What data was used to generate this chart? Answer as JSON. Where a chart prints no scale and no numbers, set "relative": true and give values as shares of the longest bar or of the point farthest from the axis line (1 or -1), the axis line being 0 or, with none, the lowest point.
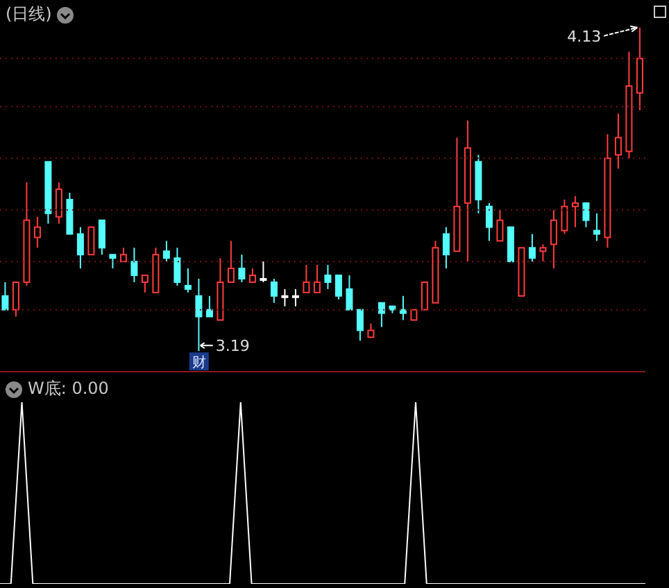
{
  "chart_data": [
    {
      "type": "candlestick",
      "title": "(日线)",
      "categories": [
        null,
        null,
        null,
        null,
        null,
        null,
        null,
        null,
        null,
        null,
        null,
        null,
        null,
        null,
        null,
        null,
        null,
        null,
        null,
        null,
        null,
        null,
        null,
        null,
        null,
        null,
        null,
        null,
        null,
        null,
        null,
        null,
        null,
        null,
        null,
        null,
        null,
        null,
        null,
        null,
        null,
        null,
        null,
        null,
        null,
        null,
        null,
        null,
        null,
        null,
        null,
        null,
        null,
        null,
        null,
        null,
        null,
        null,
        null,
        null
      ],
      "ohlc": [
        [
          3.35,
          3.39,
          3.31,
          3.31
        ],
        [
          3.31,
          3.39,
          3.29,
          3.39
        ],
        [
          3.39,
          3.68,
          3.38,
          3.57
        ],
        [
          3.52,
          3.58,
          3.49,
          3.55
        ],
        [
          3.74,
          3.74,
          3.56,
          3.59
        ],
        [
          3.58,
          3.68,
          3.56,
          3.66
        ],
        [
          3.63,
          3.65,
          3.53,
          3.53
        ],
        [
          3.53,
          3.55,
          3.43,
          3.47
        ],
        [
          3.47,
          3.55,
          3.47,
          3.55
        ],
        [
          3.57,
          3.57,
          3.47,
          3.49
        ],
        [
          3.47,
          3.47,
          3.43,
          3.46
        ],
        [
          3.45,
          3.49,
          3.45,
          3.47
        ],
        [
          3.45,
          3.49,
          3.39,
          3.41
        ],
        [
          3.39,
          3.41,
          3.36,
          3.41
        ],
        [
          3.36,
          3.49,
          3.36,
          3.47
        ],
        [
          3.48,
          3.51,
          3.45,
          3.46
        ],
        [
          3.46,
          3.49,
          3.38,
          3.39
        ],
        [
          3.38,
          3.43,
          3.36,
          3.37
        ],
        [
          3.35,
          3.4,
          3.19,
          3.29
        ],
        [
          3.31,
          3.35,
          3.29,
          3.29
        ],
        [
          3.28,
          3.46,
          3.28,
          3.39
        ],
        [
          3.39,
          3.51,
          3.39,
          3.43
        ],
        [
          3.43,
          3.47,
          3.39,
          3.4
        ],
        [
          3.39,
          3.43,
          3.39,
          3.41
        ],
        [
          3.4,
          3.45,
          3.39,
          3.4
        ],
        [
          3.39,
          3.4,
          3.33,
          3.35
        ],
        [
          3.35,
          3.37,
          3.32,
          3.35
        ],
        [
          3.35,
          3.37,
          3.32,
          3.35
        ],
        [
          3.36,
          3.44,
          3.36,
          3.39
        ],
        [
          3.36,
          3.44,
          3.36,
          3.39
        ],
        [
          3.41,
          3.44,
          3.37,
          3.39
        ],
        [
          3.41,
          3.41,
          3.34,
          3.35
        ],
        [
          3.37,
          3.41,
          3.31,
          3.31
        ],
        [
          3.31,
          3.31,
          3.22,
          3.25
        ],
        [
          3.23,
          3.27,
          3.23,
          3.25
        ],
        [
          3.33,
          3.33,
          3.26,
          3.3
        ],
        [
          3.32,
          3.32,
          3.3,
          3.31
        ],
        [
          3.31,
          3.35,
          3.28,
          3.3
        ],
        [
          3.28,
          3.31,
          3.28,
          3.31
        ],
        [
          3.31,
          3.39,
          3.31,
          3.39
        ],
        [
          3.33,
          3.51,
          3.33,
          3.49
        ],
        [
          3.53,
          3.55,
          3.43,
          3.47
        ],
        [
          3.48,
          3.81,
          3.48,
          3.61
        ],
        [
          3.62,
          3.86,
          3.45,
          3.78
        ],
        [
          3.74,
          3.76,
          3.59,
          3.63
        ],
        [
          3.61,
          3.62,
          3.51,
          3.55
        ],
        [
          3.51,
          3.6,
          3.51,
          3.57
        ],
        [
          3.55,
          3.55,
          3.45,
          3.45
        ],
        [
          3.35,
          3.49,
          3.35,
          3.49
        ],
        [
          3.49,
          3.53,
          3.45,
          3.46
        ],
        [
          3.48,
          3.5,
          3.45,
          3.49
        ],
        [
          3.5,
          3.6,
          3.43,
          3.57
        ],
        [
          3.54,
          3.63,
          3.53,
          3.61
        ],
        [
          3.61,
          3.64,
          3.55,
          3.62
        ],
        [
          3.62,
          3.62,
          3.55,
          3.57
        ],
        [
          3.54,
          3.59,
          3.51,
          3.53
        ],
        [
          3.52,
          3.82,
          3.49,
          3.75
        ],
        [
          3.76,
          3.88,
          3.72,
          3.81
        ],
        [
          3.77,
          4.06,
          3.75,
          3.96
        ],
        [
          3.94,
          4.13,
          3.89,
          4.04
        ]
      ],
      "colors": [
        "#54fcfc",
        "#ff3c3c",
        "#ff3c3c",
        "#ff3c3c",
        "#54fcfc",
        "#ff3c3c",
        "#54fcfc",
        "#54fcfc",
        "#ff3c3c",
        "#54fcfc",
        "#54fcfc",
        "#ff3c3c",
        "#54fcfc",
        "#ff3c3c",
        "#ff3c3c",
        "#54fcfc",
        "#54fcfc",
        "#54fcfc",
        "#54fcfc",
        "#54fcfc",
        "#ff3c3c",
        "#ff3c3c",
        "#54fcfc",
        "#ff3c3c",
        "#ffffff",
        "#54fcfc",
        "#ffffff",
        "#ffffff",
        "#ff3c3c",
        "#ff3c3c",
        "#54fcfc",
        "#54fcfc",
        "#54fcfc",
        "#54fcfc",
        "#ff3c3c",
        "#54fcfc",
        "#54fcfc",
        "#54fcfc",
        "#ff3c3c",
        "#ff3c3c",
        "#ff3c3c",
        "#54fcfc",
        "#ff3c3c",
        "#ff3c3c",
        "#54fcfc",
        "#54fcfc",
        "#ff3c3c",
        "#54fcfc",
        "#ff3c3c",
        "#54fcfc",
        "#ff3c3c",
        "#ff3c3c",
        "#ff3c3c",
        "#ff3c3c",
        "#54fcfc",
        "#54fcfc",
        "#ff3c3c",
        "#ff3c3c",
        "#ff3c3c",
        "#ff3c3c"
      ],
      "ylim": [
        3.13,
        4.21
      ],
      "yticks": [
        {
          "value": 3.31,
          "label": null
        },
        {
          "value": 3.45,
          "label": null
        },
        {
          "value": 3.6,
          "label": null
        },
        {
          "value": 3.75,
          "label": null
        },
        {
          "value": 3.9,
          "label": null
        },
        {
          "value": 4.04,
          "label": null
        }
      ],
      "grid": "y",
      "tick_labels": false,
      "annotations": [
        "4.13",
        "3.19",
        "财"
      ]
    },
    {
      "type": "line",
      "title": "W底: 0.00",
      "relative": true,
      "categories": [
        null,
        null,
        null,
        null,
        null,
        null,
        null,
        null,
        null,
        null,
        null,
        null,
        null,
        null,
        null,
        null,
        null,
        null,
        null,
        null,
        null,
        null,
        null,
        null,
        null,
        null,
        null,
        null,
        null,
        null,
        null,
        null,
        null,
        null,
        null,
        null,
        null,
        null,
        null,
        null,
        null,
        null,
        null,
        null,
        null,
        null,
        null,
        null,
        null,
        null,
        null,
        null,
        null,
        null,
        null,
        null,
        null,
        null,
        null,
        null
      ],
      "series": [
        {
          "color": "#ffffff",
          "values": [
            0,
            0,
            1,
            0,
            0,
            0,
            0,
            0,
            0,
            0,
            0,
            0,
            0,
            0,
            0,
            0,
            0,
            0,
            0,
            0,
            0,
            0,
            1,
            0,
            0,
            0,
            0,
            0,
            0,
            0,
            0,
            0,
            0,
            0,
            0,
            0,
            0,
            0,
            1,
            0,
            0,
            0,
            0,
            0,
            0,
            0,
            0,
            0,
            0,
            0,
            0,
            0,
            0,
            0,
            0,
            0,
            0,
            0,
            0,
            0
          ]
        }
      ],
      "tick_labels": false
    }
  ]
}
